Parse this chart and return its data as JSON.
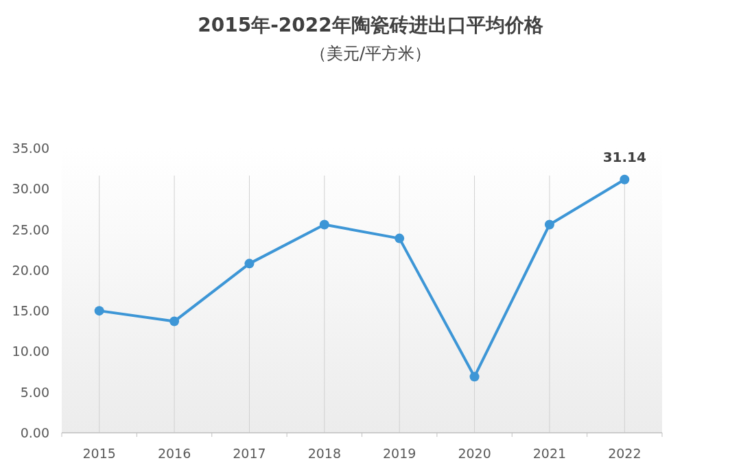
{
  "chart_data": {
    "type": "line",
    "title": "2015年-2022年陶瓷砖进出口平均价格",
    "subtitle": "（美元/平方米）",
    "categories": [
      "2015",
      "2016",
      "2017",
      "2018",
      "2019",
      "2020",
      "2021",
      "2022"
    ],
    "series": [
      {
        "color": "#3d96d6",
        "values": [
          15.0,
          13.7,
          20.8,
          25.6,
          23.9,
          6.9,
          25.6,
          31.14
        ],
        "value_labels": [
          null,
          null,
          null,
          null,
          null,
          null,
          null,
          "31.14"
        ]
      }
    ],
    "ylim": [
      0,
      35
    ],
    "yticks": [
      {
        "value": 0,
        "label": "0.00"
      },
      {
        "value": 5,
        "label": "5.00"
      },
      {
        "value": 10,
        "label": "10.00"
      },
      {
        "value": 15,
        "label": "15.00"
      },
      {
        "value": 20,
        "label": "20.00"
      },
      {
        "value": 25,
        "label": "25.00"
      },
      {
        "value": 30,
        "label": "30.00"
      },
      {
        "value": 35,
        "label": "35.00"
      }
    ],
    "grid": "x",
    "marker": "circle",
    "line_style": "solid"
  }
}
